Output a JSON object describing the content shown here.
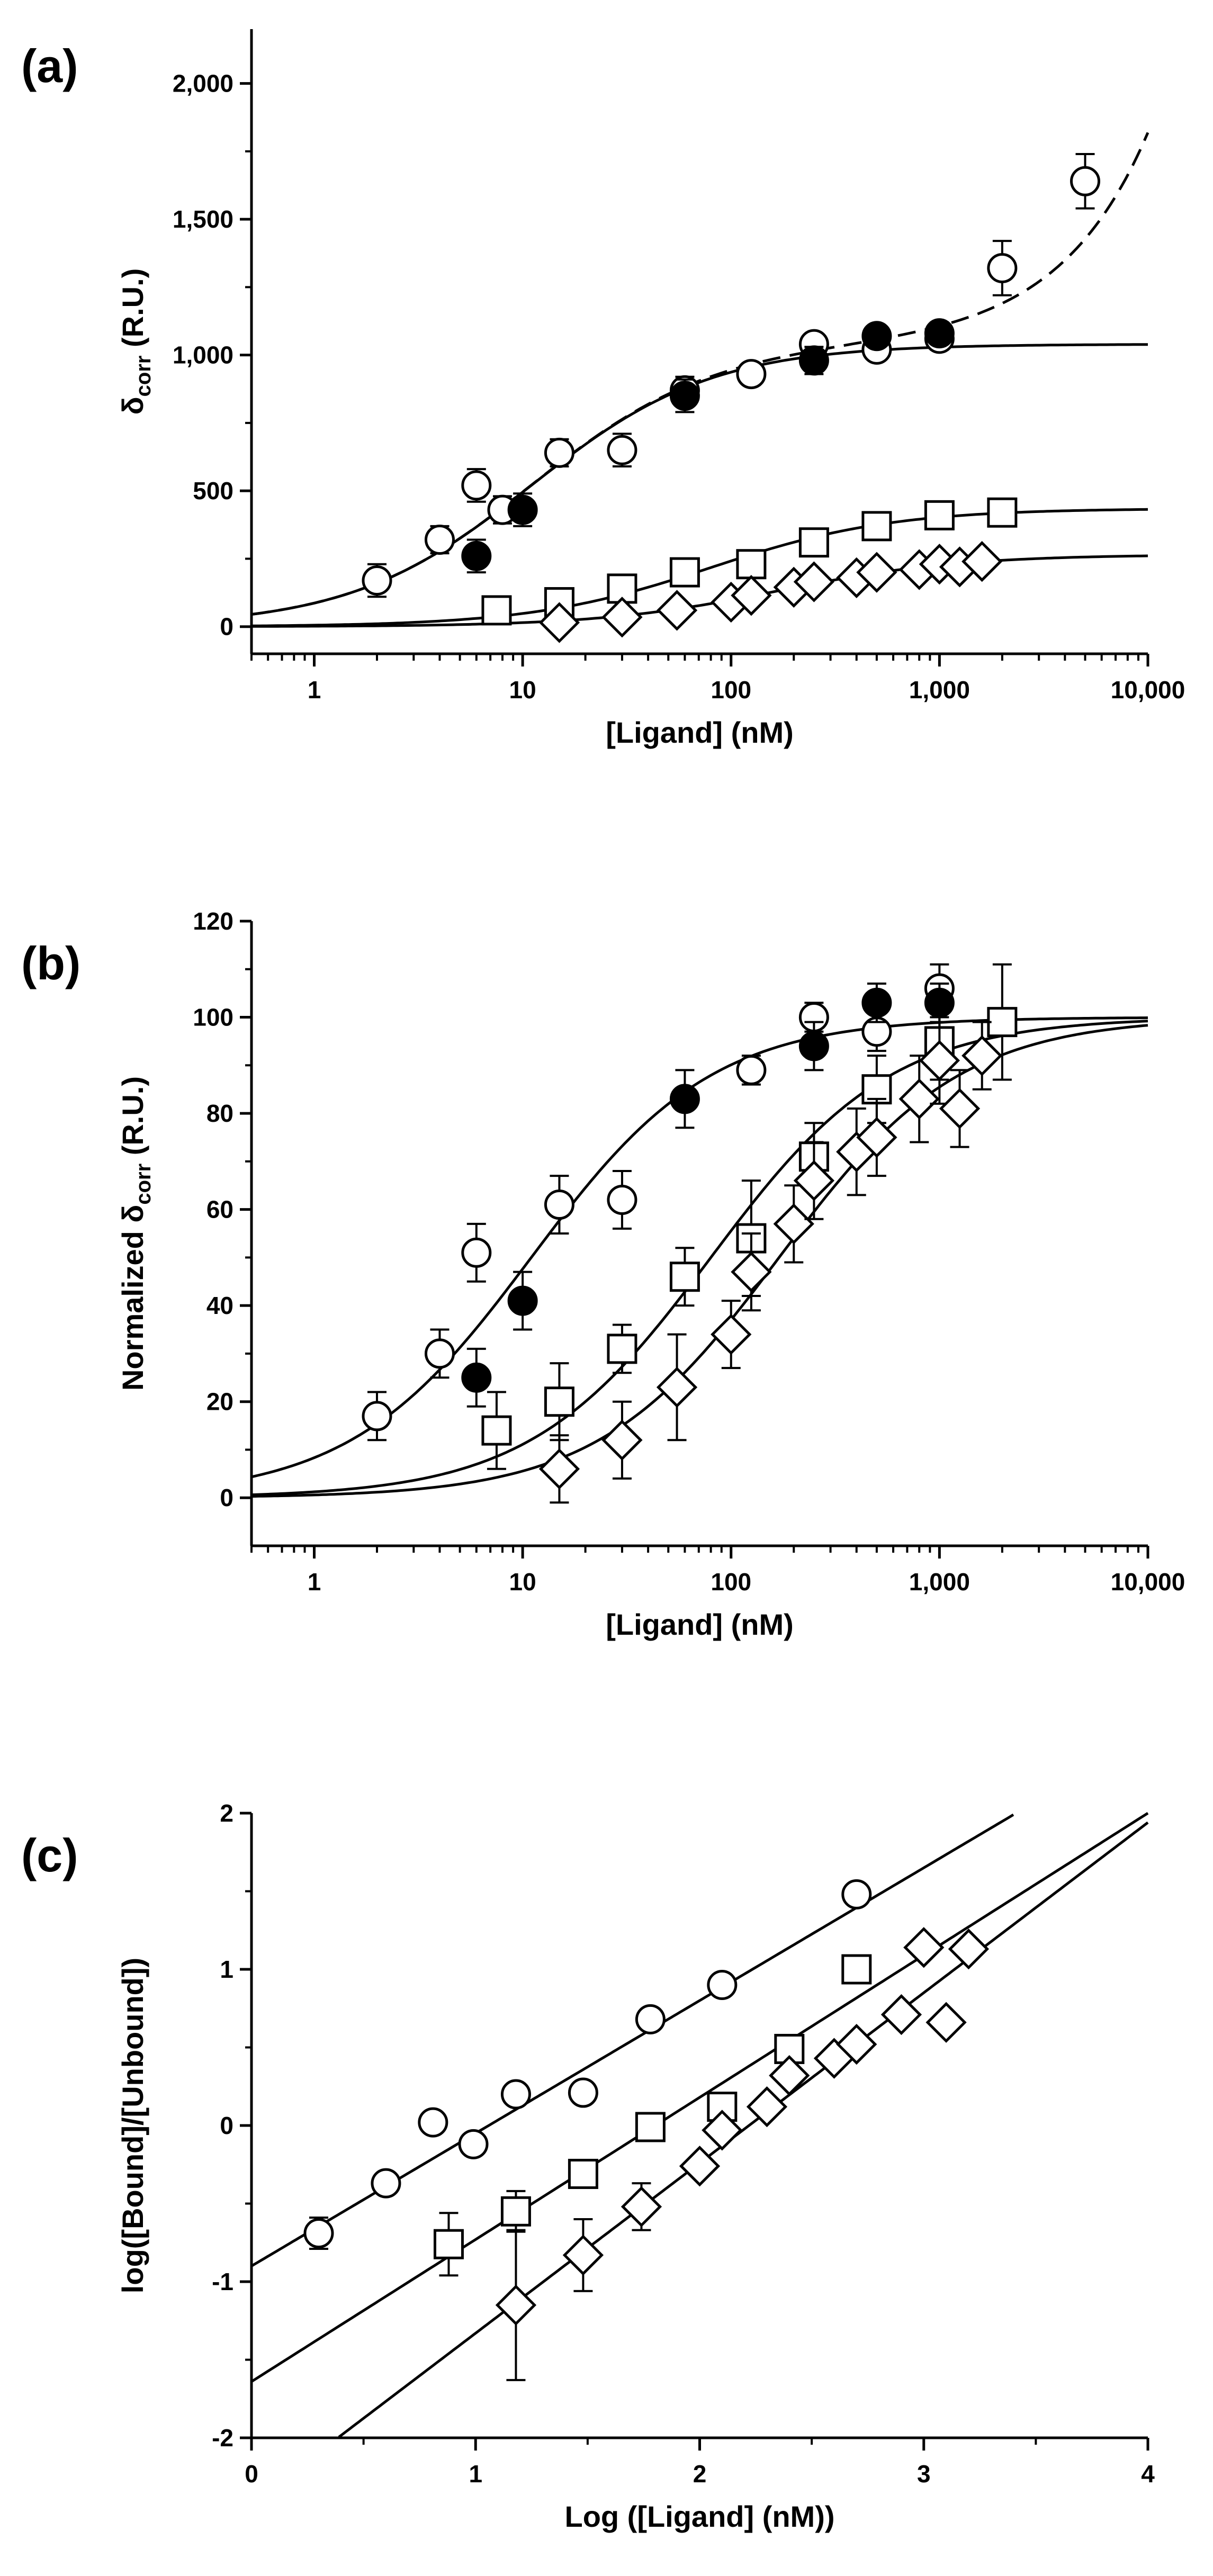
{
  "chart_data": [
    {
      "panel_label": "(a)",
      "type": "scatter",
      "x_scale": "log",
      "xlim": [
        0.5,
        10000
      ],
      "ylim": [
        -100,
        2200
      ],
      "xlabel": "[Ligand] (nM)",
      "ylabel_main": "δ",
      "ylabel_sub": "corr",
      "ylabel_unit": " (R.U.)",
      "x_ticks": [
        1,
        10,
        100,
        1000,
        10000
      ],
      "x_tick_labels": [
        "1",
        "10",
        "100",
        "1,000",
        "10,000"
      ],
      "y_ticks": [
        0,
        500,
        1000,
        1500,
        2000
      ],
      "y_tick_labels": [
        "0",
        "500",
        "1,000",
        "1,500",
        "2,000"
      ],
      "series": [
        {
          "marker": "open-circle",
          "x": [
            2,
            4,
            6,
            8,
            15,
            30,
            60,
            125,
            250,
            500,
            1000,
            2000,
            5000
          ],
          "y": [
            170,
            320,
            520,
            430,
            640,
            650,
            870,
            930,
            1040,
            1020,
            1060,
            1320,
            1640
          ],
          "err": [
            60,
            50,
            60,
            50,
            50,
            60,
            50,
            40,
            20,
            30,
            40,
            100,
            100
          ]
        },
        {
          "marker": "filled-circle",
          "x": [
            6,
            10,
            60,
            250,
            500,
            1000
          ],
          "y": [
            260,
            430,
            850,
            980,
            1070,
            1080
          ],
          "err": [
            60,
            60,
            60,
            50,
            30,
            40
          ]
        },
        {
          "marker": "open-square",
          "x": [
            7.5,
            15,
            30,
            60,
            125,
            250,
            500,
            1000,
            2000
          ],
          "y": [
            60,
            90,
            140,
            200,
            230,
            310,
            370,
            410,
            420
          ],
          "err": [
            15,
            15,
            15,
            15,
            40,
            25,
            20,
            30,
            40
          ]
        },
        {
          "marker": "open-diamond",
          "x": [
            15,
            30,
            55,
            100,
            125,
            200,
            250,
            400,
            500,
            800,
            1000,
            1250,
            1600
          ],
          "y": [
            15,
            35,
            60,
            90,
            115,
            145,
            165,
            180,
            200,
            210,
            230,
            220,
            240
          ],
          "err": [
            10,
            10,
            10,
            10,
            10,
            10,
            10,
            10,
            10,
            10,
            10,
            10,
            10
          ]
        }
      ],
      "fits": [
        {
          "style": "solid",
          "model": "one-site",
          "Bmax": 1040,
          "Kd": 11
        },
        {
          "style": "dashed",
          "model": "one-site+linear",
          "Bmax": 1040,
          "Kd": 11,
          "slope": 0.078
        },
        {
          "style": "solid",
          "model": "one-site",
          "Bmax": 435,
          "Kd": 80
        },
        {
          "style": "solid",
          "model": "one-site",
          "Bmax": 265,
          "Kd": 170
        }
      ]
    },
    {
      "panel_label": "(b)",
      "type": "scatter",
      "x_scale": "log",
      "xlim": [
        0.5,
        10000
      ],
      "ylim": [
        -10,
        120
      ],
      "xlabel": "[Ligand] (nM)",
      "ylabel_main": "Normalized δ",
      "ylabel_sub": "corr",
      "ylabel_unit": " (R.U.)",
      "x_ticks": [
        1,
        10,
        100,
        1000,
        10000
      ],
      "x_tick_labels": [
        "1",
        "10",
        "100",
        "1,000",
        "10,000"
      ],
      "y_ticks": [
        0,
        20,
        40,
        60,
        80,
        100,
        120
      ],
      "y_tick_labels": [
        "0",
        "20",
        "40",
        "60",
        "80",
        "100",
        "120"
      ],
      "series": [
        {
          "marker": "open-circle",
          "x": [
            2,
            4,
            6,
            15,
            30,
            125,
            250,
            500,
            1000
          ],
          "y": [
            17,
            30,
            51,
            61,
            62,
            89,
            100,
            97,
            106
          ],
          "err": [
            5,
            5,
            6,
            6,
            6,
            3,
            3,
            4,
            5
          ]
        },
        {
          "marker": "filled-circle",
          "x": [
            6,
            10,
            60,
            250,
            500,
            1000
          ],
          "y": [
            25,
            41,
            83,
            94,
            103,
            103
          ],
          "err": [
            6,
            6,
            6,
            5,
            4,
            4
          ]
        },
        {
          "marker": "open-square",
          "x": [
            7.5,
            15,
            30,
            60,
            125,
            250,
            500,
            1000,
            2000
          ],
          "y": [
            14,
            20,
            31,
            46,
            54,
            71,
            85,
            95,
            99
          ],
          "err": [
            8,
            8,
            5,
            6,
            12,
            7,
            7,
            8,
            12
          ]
        },
        {
          "marker": "open-diamond",
          "x": [
            15,
            30,
            55,
            100,
            125,
            200,
            250,
            400,
            500,
            800,
            1000,
            1250,
            1600
          ],
          "y": [
            6,
            12,
            23,
            34,
            47,
            57,
            66,
            72,
            75,
            83,
            91,
            81,
            92
          ],
          "err": [
            7,
            8,
            11,
            7,
            8,
            8,
            8,
            9,
            8,
            9,
            9,
            8,
            7
          ]
        }
      ],
      "fits": [
        {
          "style": "solid",
          "model": "one-site",
          "Bmax": 100,
          "Kd": 11
        },
        {
          "style": "solid",
          "model": "one-site",
          "Bmax": 100,
          "Kd": 80
        },
        {
          "style": "solid",
          "model": "one-site",
          "Bmax": 100,
          "Kd": 170
        }
      ]
    },
    {
      "panel_label": "(c)",
      "type": "scatter",
      "x_scale": "linear",
      "xlim": [
        0,
        4
      ],
      "ylim": [
        -2,
        2
      ],
      "xlabel": "Log ([Ligand] (nM))",
      "ylabel_main": "log([Bound]/[Unbound])",
      "ylabel_sub": "",
      "ylabel_unit": "",
      "x_ticks": [
        0,
        1,
        2,
        3,
        4
      ],
      "x_tick_labels": [
        "0",
        "1",
        "2",
        "3",
        "4"
      ],
      "y_ticks": [
        -2,
        -1,
        0,
        1,
        2
      ],
      "y_tick_labels": [
        "-2",
        "-1",
        "0",
        "1",
        "2"
      ],
      "series": [
        {
          "marker": "open-circle",
          "x": [
            0.3,
            0.6,
            0.81,
            0.99,
            1.18,
            1.48,
            1.78,
            2.1,
            2.7
          ],
          "y": [
            -0.69,
            -0.37,
            0.02,
            -0.12,
            0.2,
            0.21,
            0.68,
            0.9,
            1.48
          ],
          "err": [
            0.1,
            0,
            0,
            0,
            0,
            0,
            0,
            0,
            0
          ]
        },
        {
          "marker": "open-square",
          "x": [
            0.88,
            1.18,
            1.48,
            1.78,
            2.1,
            2.4,
            2.7
          ],
          "y": [
            -0.76,
            -0.55,
            -0.31,
            -0.01,
            0.12,
            0.49,
            1.0
          ],
          "err": [
            0.2,
            0.13,
            0,
            0,
            0,
            0,
            0
          ]
        },
        {
          "marker": "open-diamond",
          "x": [
            1.18,
            1.48,
            1.74,
            2.0,
            2.1,
            2.3,
            2.4,
            2.6,
            2.7,
            2.9,
            3.0,
            3.1,
            3.2
          ],
          "y": [
            -1.15,
            -0.83,
            -0.52,
            -0.26,
            -0.03,
            0.12,
            0.32,
            0.43,
            0.52,
            0.71,
            1.14,
            0.66,
            1.13
          ],
          "err": [
            0.48,
            0.23,
            0.15,
            0,
            0,
            0,
            0,
            0,
            0,
            0,
            0,
            0,
            0
          ]
        }
      ],
      "fits": [
        {
          "style": "solid",
          "model": "linear",
          "slope": 0.85,
          "intercept": -0.9,
          "x_range": [
            0,
            3.4
          ]
        },
        {
          "style": "solid",
          "model": "linear",
          "slope": 0.91,
          "intercept": -1.64,
          "x_range": [
            0,
            4
          ]
        },
        {
          "style": "solid",
          "model": "linear",
          "slope": 1.09,
          "intercept": -2.42,
          "x_range": [
            0.39,
            4
          ]
        }
      ]
    }
  ]
}
